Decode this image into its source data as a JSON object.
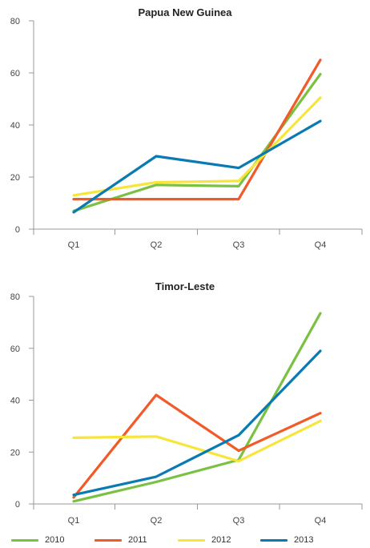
{
  "colors": {
    "2010": "#7ac143",
    "2011": "#f15a29",
    "2012": "#f7e53b",
    "2013": "#0a7ab3",
    "axis": "#999999",
    "text": "#444444"
  },
  "legend": [
    {
      "label": "2010",
      "color": "#7ac143"
    },
    {
      "label": "2011",
      "color": "#f15a29"
    },
    {
      "label": "2012",
      "color": "#f7e53b"
    },
    {
      "label": "2013",
      "color": "#0a7ab3"
    }
  ],
  "chart_data": [
    {
      "type": "line",
      "title": "Papua New Guinea",
      "categories": [
        "Q1",
        "Q2",
        "Q3",
        "Q4"
      ],
      "ylim": [
        0,
        80
      ],
      "yticks": [
        0,
        20,
        40,
        60,
        80
      ],
      "grid": false,
      "series": [
        {
          "name": "2010",
          "color": "#7ac143",
          "values": [
            7,
            17,
            16.5,
            59.5
          ]
        },
        {
          "name": "2011",
          "color": "#f15a29",
          "values": [
            11.5,
            11.5,
            11.5,
            65
          ]
        },
        {
          "name": "2012",
          "color": "#f7e53b",
          "values": [
            13,
            18,
            18.5,
            50.5
          ]
        },
        {
          "name": "2013",
          "color": "#0a7ab3",
          "values": [
            6.5,
            28,
            23.5,
            41.5
          ]
        }
      ]
    },
    {
      "type": "line",
      "title": "Timor-Leste",
      "categories": [
        "Q1",
        "Q2",
        "Q3",
        "Q4"
      ],
      "ylim": [
        0,
        80
      ],
      "yticks": [
        0,
        20,
        40,
        60,
        80
      ],
      "grid": false,
      "series": [
        {
          "name": "2010",
          "color": "#7ac143",
          "values": [
            1,
            8.5,
            17,
            73.5
          ]
        },
        {
          "name": "2011",
          "color": "#f15a29",
          "values": [
            2.5,
            42,
            20.5,
            35
          ]
        },
        {
          "name": "2012",
          "color": "#f7e53b",
          "values": [
            25.5,
            26,
            16.5,
            32
          ]
        },
        {
          "name": "2013",
          "color": "#0a7ab3",
          "values": [
            3.5,
            10.5,
            26.5,
            59
          ]
        }
      ]
    }
  ]
}
